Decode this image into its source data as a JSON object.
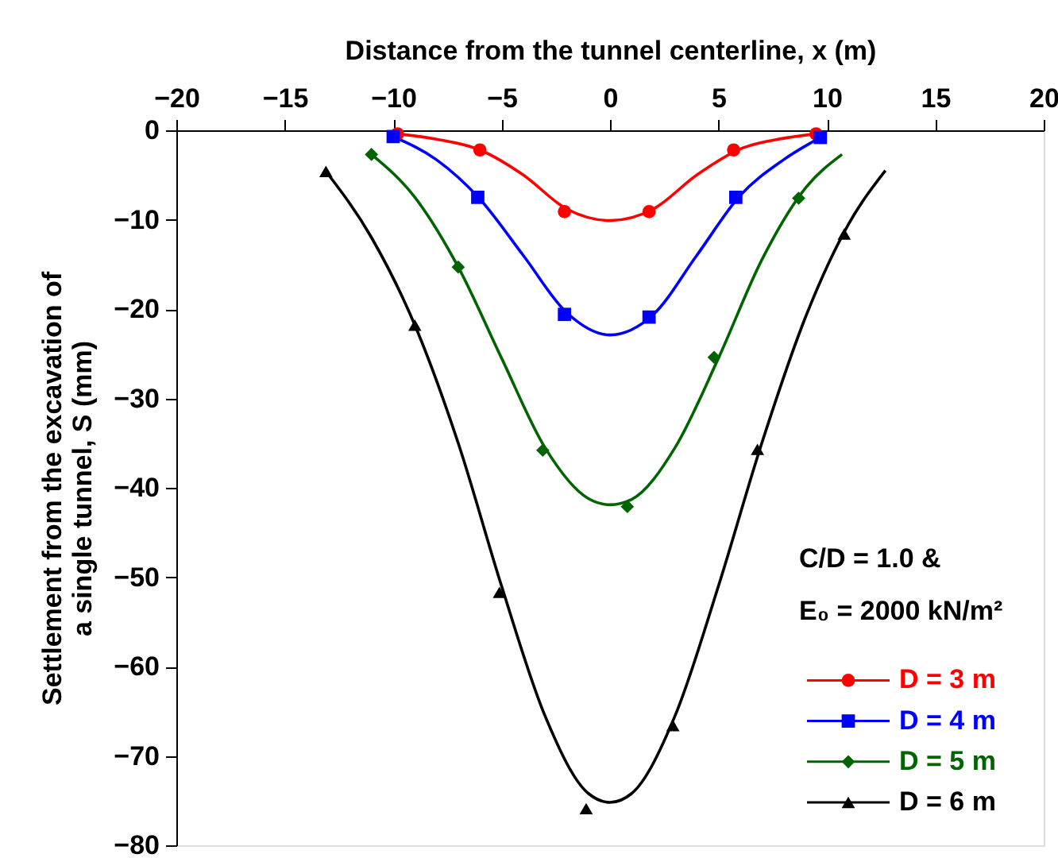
{
  "chart_data": {
    "type": "scatter",
    "xlabel": "Distance from the tunnel centerline, x (m)",
    "ylabel": "Settlement from the excavation of\na single tunnel, S (mm)",
    "xlim": [
      -20,
      20
    ],
    "xticks": [
      -20,
      -15,
      -10,
      -5,
      0,
      5,
      10,
      15,
      20
    ],
    "ylim": [
      -80,
      0
    ],
    "yticks": [
      -80,
      -70,
      -60,
      -50,
      -40,
      -30,
      -20,
      -10,
      0
    ],
    "grid": false,
    "legend": "bottom right",
    "annotations": [
      "C/D = 1.0 &",
      "E₀ = 2000 kN/m²"
    ],
    "series": [
      {
        "type": "line",
        "color": "#ff0000",
        "marker": "none",
        "x": [
          -9.8,
          -8,
          -6,
          -4,
          -2,
          0,
          2,
          4,
          6,
          8,
          9.5
        ],
        "values": [
          -0.4,
          -1,
          -2.2,
          -5,
          -8.8,
          -10.1,
          -8.8,
          -5,
          -2.1,
          -0.9,
          -0.4
        ]
      },
      {
        "type": "line",
        "color": "#0000ff",
        "marker": "none",
        "x": [
          -10,
          -8,
          -6,
          -4,
          -2,
          0,
          2,
          4,
          6,
          8,
          9.7
        ],
        "values": [
          -0.7,
          -3.3,
          -7.7,
          -14,
          -20.4,
          -22.9,
          -20.6,
          -14,
          -7.3,
          -3.3,
          -0.8
        ]
      },
      {
        "type": "line",
        "color": "#006400",
        "marker": "none",
        "x": [
          -11,
          -9,
          -7,
          -5,
          -3,
          -1,
          0,
          1,
          3,
          5,
          7,
          9,
          10.7
        ],
        "values": [
          -2.7,
          -7.5,
          -15.3,
          -25.5,
          -35.5,
          -41.2,
          -41.9,
          -41.3,
          -35.5,
          -25.5,
          -14.5,
          -6.5,
          -2.7
        ]
      },
      {
        "type": "line",
        "color": "#000000",
        "marker": "none",
        "x": [
          -13.1,
          -11,
          -9,
          -7,
          -5,
          -3,
          -1,
          0,
          1,
          3,
          5,
          7,
          9,
          11,
          12.7
        ],
        "values": [
          -4.6,
          -12,
          -21.8,
          -35,
          -51,
          -65.5,
          -74.2,
          -75.2,
          -74.2,
          -65.5,
          -51,
          -35,
          -21,
          -10.5,
          -4.5
        ]
      },
      {
        "name": "D = 3 m",
        "color": "#ff0000",
        "marker": "circle",
        "x": [
          -9.8,
          -6.0,
          -2.1,
          1.8,
          5.7,
          9.5
        ],
        "values": [
          -0.4,
          -2.2,
          -9.1,
          -9.1,
          -2.2,
          -0.4
        ]
      },
      {
        "name": "D = 4 m",
        "color": "#0000ff",
        "marker": "square",
        "x": [
          -10.0,
          -6.1,
          -2.1,
          1.8,
          5.8,
          9.7
        ],
        "values": [
          -0.7,
          -7.5,
          -20.6,
          -20.9,
          -7.5,
          -0.8
        ]
      },
      {
        "name": "D = 5 m",
        "color": "#006400",
        "marker": "diamond",
        "x": [
          -11.0,
          -7.0,
          -3.1,
          0.8,
          4.8,
          8.7
        ],
        "values": [
          -2.7,
          -15.3,
          -35.8,
          -42.1,
          -25.4,
          -7.6
        ]
      },
      {
        "name": "D = 6 m",
        "color": "#000000",
        "marker": "triangle",
        "x": [
          -13.1,
          -9.0,
          -5.1,
          -1.1,
          2.9,
          6.8,
          10.8
        ],
        "values": [
          -4.6,
          -21.8,
          -51.7,
          -75.9,
          -66.6,
          -35.7,
          -11.6
        ]
      }
    ]
  }
}
